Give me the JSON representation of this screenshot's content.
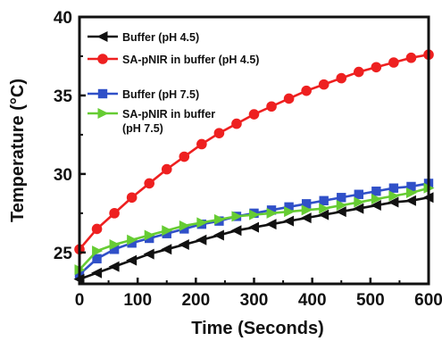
{
  "chart_data": {
    "type": "line",
    "title": "",
    "xlabel": "Time (Seconds)",
    "ylabel": "Temperature (°C)",
    "xlim": [
      0,
      600
    ],
    "ylim": [
      23,
      40
    ],
    "x_ticks": [
      "0",
      "100",
      "200",
      "300",
      "400",
      "500",
      "600"
    ],
    "y_ticks": [
      "25",
      "30",
      "35",
      "40"
    ],
    "grid": false,
    "legend_position": "top-left",
    "x": [
      0,
      30,
      60,
      90,
      120,
      150,
      180,
      210,
      240,
      270,
      300,
      330,
      360,
      390,
      420,
      450,
      480,
      510,
      540,
      570,
      600
    ],
    "series": [
      {
        "name": "Buffer (pH 4.5)",
        "color": "#111111",
        "marker": "triangle-left",
        "values": [
          23.3,
          23.7,
          24.1,
          24.5,
          24.9,
          25.2,
          25.5,
          25.8,
          26.1,
          26.4,
          26.6,
          26.8,
          27.0,
          27.2,
          27.4,
          27.6,
          27.8,
          28.0,
          28.2,
          28.3,
          28.5
        ]
      },
      {
        "name": "SA-pNIR in buffer (pH 4.5)",
        "color": "#ee2020",
        "marker": "circle",
        "values": [
          25.2,
          26.5,
          27.5,
          28.5,
          29.4,
          30.3,
          31.1,
          31.9,
          32.6,
          33.2,
          33.8,
          34.3,
          34.8,
          35.3,
          35.7,
          36.1,
          36.5,
          36.8,
          37.1,
          37.4,
          37.6
        ]
      },
      {
        "name": "Buffer (pH 7.5)",
        "color": "#3050c8",
        "marker": "square",
        "values": [
          23.6,
          24.6,
          25.2,
          25.6,
          25.9,
          26.2,
          26.5,
          26.8,
          27.0,
          27.3,
          27.5,
          27.7,
          27.9,
          28.1,
          28.3,
          28.5,
          28.7,
          28.9,
          29.1,
          29.2,
          29.4
        ]
      },
      {
        "name": "SA-pNIR in buffer (pH 7.5)",
        "color": "#66cc33",
        "marker": "triangle-right",
        "values": [
          23.9,
          25.1,
          25.5,
          25.8,
          26.1,
          26.4,
          26.7,
          26.9,
          27.1,
          27.3,
          27.4,
          27.5,
          27.6,
          27.7,
          27.8,
          28.0,
          28.2,
          28.4,
          28.6,
          28.8,
          29.1
        ]
      }
    ],
    "legend": [
      {
        "lines": [
          "Buffer (pH 4.5)"
        ]
      },
      {
        "lines": [
          "SA-pNIR in buffer (pH 4.5)"
        ]
      },
      {
        "lines": [
          "Buffer (pH 7.5)"
        ]
      },
      {
        "lines": [
          "SA-pNIR in buffer",
          "(pH 7.5)"
        ]
      }
    ]
  }
}
